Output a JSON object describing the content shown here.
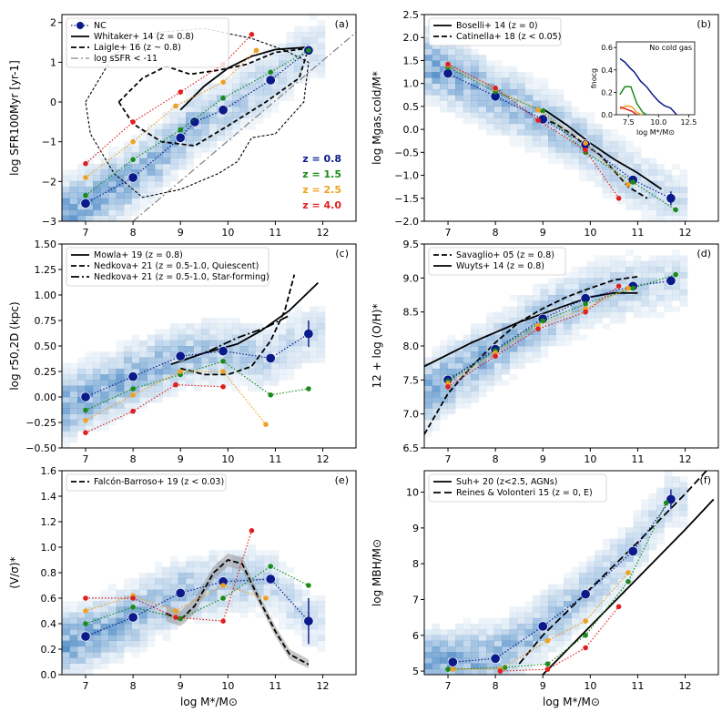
{
  "colors": {
    "z08": "#0a1a8a",
    "z15": "#1a8a1a",
    "z25": "#f0a020",
    "z40": "#e02020",
    "hist": "#3a7ec0"
  },
  "chart_data": [
    {
      "panel": "(a)",
      "type": "scatter",
      "ylabel": "log SFR100Myr [yr-1]",
      "ylabel_parts": [
        "log SFR",
        "100Myr",
        " [yr",
        "−1",
        "]"
      ],
      "xlim": [
        6.5,
        12.7
      ],
      "ylim": [
        -3,
        2.2
      ],
      "yticks": [
        -3,
        -2,
        -1,
        0,
        1,
        2
      ],
      "ytick_labels": [
        "−3",
        "−2",
        "−1",
        "0",
        "1",
        "2"
      ],
      "legend": [
        "NC",
        "Whitaker+ 14 (z = 0.8)",
        "Laigle+ 16 (z ~ 0.8)",
        "log sSFR < -11"
      ],
      "z_labels": [
        "z = 0.8",
        "z = 1.5",
        "z = 2.5",
        "z = 4.0"
      ],
      "series": [
        {
          "name": "z = 0.8",
          "x": [
            7.0,
            8.0,
            9.0,
            9.3,
            9.9,
            10.9,
            11.7
          ],
          "y": [
            -2.55,
            -1.9,
            -0.9,
            -0.5,
            -0.2,
            0.55,
            1.3
          ]
        },
        {
          "name": "z = 1.5",
          "x": [
            7.0,
            8.0,
            9.0,
            9.9,
            10.9,
            11.7
          ],
          "y": [
            -2.35,
            -1.45,
            -0.7,
            0.1,
            0.75,
            1.3
          ]
        },
        {
          "name": "z = 2.5",
          "x": [
            7.0,
            8.0,
            8.9,
            9.9,
            10.6
          ],
          "y": [
            -1.9,
            -1.0,
            -0.1,
            0.5,
            1.3
          ]
        },
        {
          "name": "z = 4.0",
          "x": [
            7.0,
            8.0,
            9.0,
            9.9,
            10.5
          ],
          "y": [
            -1.55,
            -0.5,
            0.25,
            0.95,
            1.7
          ]
        }
      ]
    },
    {
      "panel": "(b)",
      "type": "scatter",
      "ylabel": "log Mgas,cold/M*",
      "ylim": [
        -2.0,
        2.5
      ],
      "yticks": [
        -2.0,
        -1.5,
        -1.0,
        -0.5,
        0.0,
        0.5,
        1.0,
        1.5,
        2.0,
        2.5
      ],
      "ytick_labels": [
        "−2.0",
        "−1.5",
        "−1.0",
        "−0.5",
        "0.0",
        "0.5",
        "1.0",
        "1.5",
        "2.0",
        "2.5"
      ],
      "legend": [
        "Boselli+ 14 (z = 0)",
        "Catinella+ 18 (z < 0.05)"
      ],
      "inset": {
        "title": "No cold gas",
        "ylabel": "fnocg",
        "xlabel": "log M*/M⊙",
        "yticks": [
          "0.0",
          "0.2",
          "0.4",
          "0.6"
        ],
        "xticks": [
          "7.5",
          "10.0",
          "12.5"
        ]
      },
      "series": [
        {
          "name": "z = 0.8",
          "x": [
            7.0,
            8.0,
            9.0,
            9.9,
            10.9,
            11.7
          ],
          "y": [
            1.22,
            0.72,
            0.22,
            -0.33,
            -1.1,
            -1.5
          ]
        },
        {
          "name": "z = 1.5",
          "x": [
            7.0,
            8.0,
            9.0,
            9.9,
            10.9,
            11.8
          ],
          "y": [
            1.35,
            0.82,
            0.4,
            -0.5,
            -1.15,
            -1.75
          ]
        },
        {
          "name": "z = 2.5",
          "x": [
            7.0,
            8.0,
            8.9,
            9.9,
            10.8
          ],
          "y": [
            1.4,
            0.88,
            0.42,
            -0.3,
            -1.2
          ]
        },
        {
          "name": "z = 4.0",
          "x": [
            7.0,
            8.0,
            8.9,
            9.9,
            10.6
          ],
          "y": [
            1.42,
            0.9,
            0.2,
            -0.45,
            -1.5
          ]
        }
      ]
    },
    {
      "panel": "(c)",
      "type": "scatter",
      "ylabel": "log r50,2D (kpc)",
      "ylim": [
        -0.5,
        1.5
      ],
      "yticks": [
        -0.5,
        -0.25,
        0.0,
        0.25,
        0.5,
        0.75,
        1.0,
        1.25,
        1.5
      ],
      "ytick_labels": [
        "−0.50",
        "−0.25",
        "0.00",
        "0.25",
        "0.50",
        "0.75",
        "1.00",
        "1.25",
        "1.50"
      ],
      "legend": [
        "Mowla+ 19 (z = 0.8)",
        "Nedkova+ 21 (z = 0.5-1.0, Quiescent)",
        "Nedkova+ 21 (z = 0.5-1.0, Star-forming)"
      ],
      "series": [
        {
          "name": "z = 0.8",
          "x": [
            7.0,
            8.0,
            9.0,
            9.9,
            10.9,
            11.7
          ],
          "y": [
            0.0,
            0.2,
            0.4,
            0.45,
            0.38,
            0.62
          ]
        },
        {
          "name": "z = 1.5",
          "x": [
            7.0,
            8.0,
            9.0,
            9.9,
            10.9,
            11.7
          ],
          "y": [
            -0.13,
            0.08,
            0.22,
            0.35,
            0.02,
            0.08
          ]
        },
        {
          "name": "z = 2.5",
          "x": [
            7.0,
            8.0,
            9.0,
            9.9,
            10.8
          ],
          "y": [
            -0.23,
            0.02,
            0.25,
            0.25,
            -0.27
          ]
        },
        {
          "name": "z = 4.0",
          "x": [
            7.0,
            8.0,
            8.9,
            9.9
          ],
          "y": [
            -0.35,
            -0.14,
            0.12,
            0.1
          ]
        }
      ]
    },
    {
      "panel": "(d)",
      "type": "scatter",
      "ylabel": "12 + log (O/H)*",
      "ylim": [
        6.5,
        9.5
      ],
      "yticks": [
        6.5,
        7.0,
        7.5,
        8.0,
        8.5,
        9.0,
        9.5
      ],
      "ytick_labels": [
        "6.5",
        "7.0",
        "7.5",
        "8.0",
        "8.5",
        "9.0",
        "9.5"
      ],
      "legend": [
        "Savaglio+ 05 (z = 0.8)",
        "Wuyts+ 14 (z = 0.8)"
      ],
      "series": [
        {
          "name": "z = 0.8",
          "x": [
            7.0,
            8.0,
            9.0,
            9.9,
            10.9,
            11.7
          ],
          "y": [
            7.5,
            7.95,
            8.4,
            8.7,
            8.88,
            8.96
          ]
        },
        {
          "name": "z = 1.5",
          "x": [
            7.0,
            8.0,
            9.0,
            9.9,
            10.9,
            11.8
          ],
          "y": [
            7.48,
            7.93,
            8.37,
            8.62,
            8.85,
            9.05
          ]
        },
        {
          "name": "z = 2.5",
          "x": [
            7.0,
            8.0,
            8.9,
            9.9,
            10.8
          ],
          "y": [
            7.45,
            7.9,
            8.3,
            8.55,
            8.85
          ]
        },
        {
          "name": "z = 4.0",
          "x": [
            7.0,
            8.0,
            8.9,
            9.9,
            10.6
          ],
          "y": [
            7.4,
            7.85,
            8.25,
            8.5,
            8.88
          ]
        }
      ]
    },
    {
      "panel": "(e)",
      "type": "scatter",
      "ylabel": "(V/σ)*",
      "ylim": [
        0.0,
        1.6
      ],
      "yticks": [
        0.0,
        0.2,
        0.4,
        0.6,
        0.8,
        1.0,
        1.2,
        1.4,
        1.6
      ],
      "ytick_labels": [
        "0.0",
        "0.2",
        "0.4",
        "0.6",
        "0.8",
        "1.0",
        "1.2",
        "1.4",
        "1.6"
      ],
      "legend": [
        "Falcón-Barroso+ 19 (z < 0.03)"
      ],
      "series": [
        {
          "name": "z = 0.8",
          "x": [
            7.0,
            8.0,
            9.0,
            9.9,
            10.9,
            11.7
          ],
          "y": [
            0.3,
            0.45,
            0.64,
            0.73,
            0.75,
            0.42
          ]
        },
        {
          "name": "z = 1.5",
          "x": [
            7.0,
            8.0,
            9.0,
            9.9,
            10.9,
            11.7
          ],
          "y": [
            0.4,
            0.53,
            0.44,
            0.6,
            0.85,
            0.7
          ]
        },
        {
          "name": "z = 2.5",
          "x": [
            7.0,
            8.0,
            8.9,
            9.9,
            10.8
          ],
          "y": [
            0.5,
            0.62,
            0.5,
            0.7,
            0.6
          ]
        },
        {
          "name": "z = 4.0",
          "x": [
            7.0,
            8.0,
            8.9,
            9.9,
            10.5
          ],
          "y": [
            0.6,
            0.6,
            0.45,
            0.42,
            1.13
          ]
        }
      ]
    },
    {
      "panel": "(f)",
      "type": "scatter",
      "ylabel": "log MBH/M⊙",
      "ylim": [
        4.9,
        10.6
      ],
      "yticks": [
        5,
        6,
        7,
        8,
        9,
        10
      ],
      "ytick_labels": [
        "5",
        "6",
        "7",
        "8",
        "9",
        "10"
      ],
      "legend": [
        "Suh+ 20 (z<2.5, AGNs)",
        "Reines & Volonteri 15 (z = 0, E)"
      ],
      "series": [
        {
          "name": "z = 0.8",
          "x": [
            7.1,
            8.0,
            9.0,
            9.9,
            10.9,
            11.7
          ],
          "y": [
            5.25,
            5.35,
            6.25,
            7.15,
            8.35,
            9.8
          ]
        },
        {
          "name": "z = 1.5",
          "x": [
            7.0,
            8.2,
            9.1,
            9.9,
            10.8,
            11.6
          ],
          "y": [
            5.05,
            5.1,
            5.2,
            6.0,
            7.5,
            9.7
          ]
        },
        {
          "name": "z = 2.5",
          "x": [
            7.1,
            8.1,
            9.1,
            9.9,
            10.8
          ],
          "y": [
            5.05,
            5.05,
            5.85,
            6.4,
            7.75
          ]
        },
        {
          "name": "z = 4.0",
          "x": [
            8.1,
            9.1,
            9.9,
            10.6
          ],
          "y": [
            5.0,
            5.05,
            5.65,
            6.8
          ]
        }
      ]
    }
  ],
  "xaxis": {
    "xlabel": "log M*/M⊙",
    "xticks": [
      7,
      8,
      9,
      10,
      11,
      12
    ],
    "xtick_labels": [
      "7",
      "8",
      "9",
      "10",
      "11",
      "12"
    ]
  }
}
